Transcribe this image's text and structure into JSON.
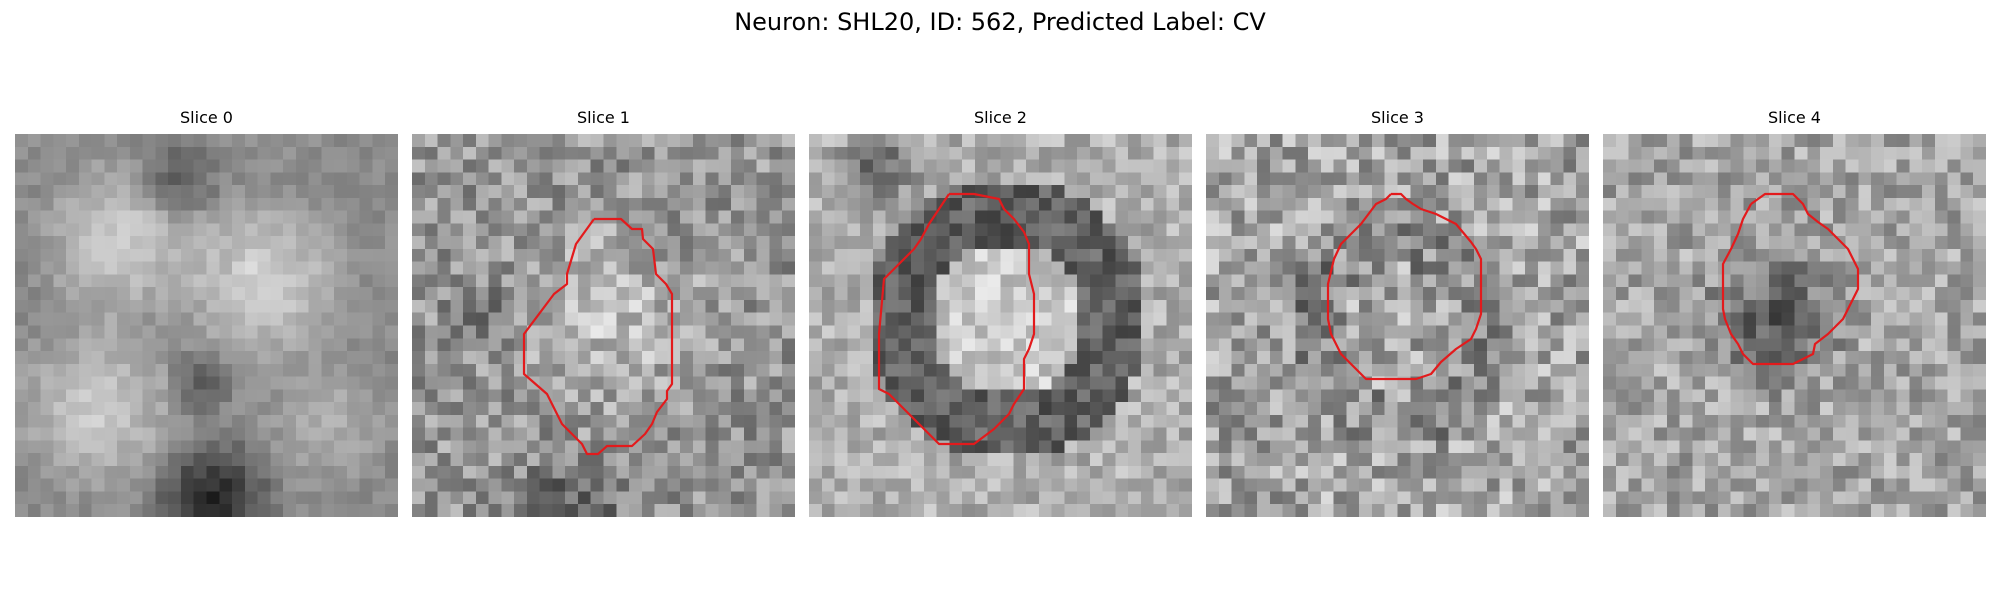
{
  "figure": {
    "title": "Neuron: SHL20, ID: 562, Predicted Label: CV"
  },
  "outline_color": "#e31a1c",
  "panels": [
    {
      "title": "Slice 0",
      "has_outline": false
    },
    {
      "title": "Slice 1",
      "has_outline": true
    },
    {
      "title": "Slice 2",
      "has_outline": true
    },
    {
      "title": "Slice 3",
      "has_outline": true
    },
    {
      "title": "Slice 4",
      "has_outline": true
    }
  ]
}
